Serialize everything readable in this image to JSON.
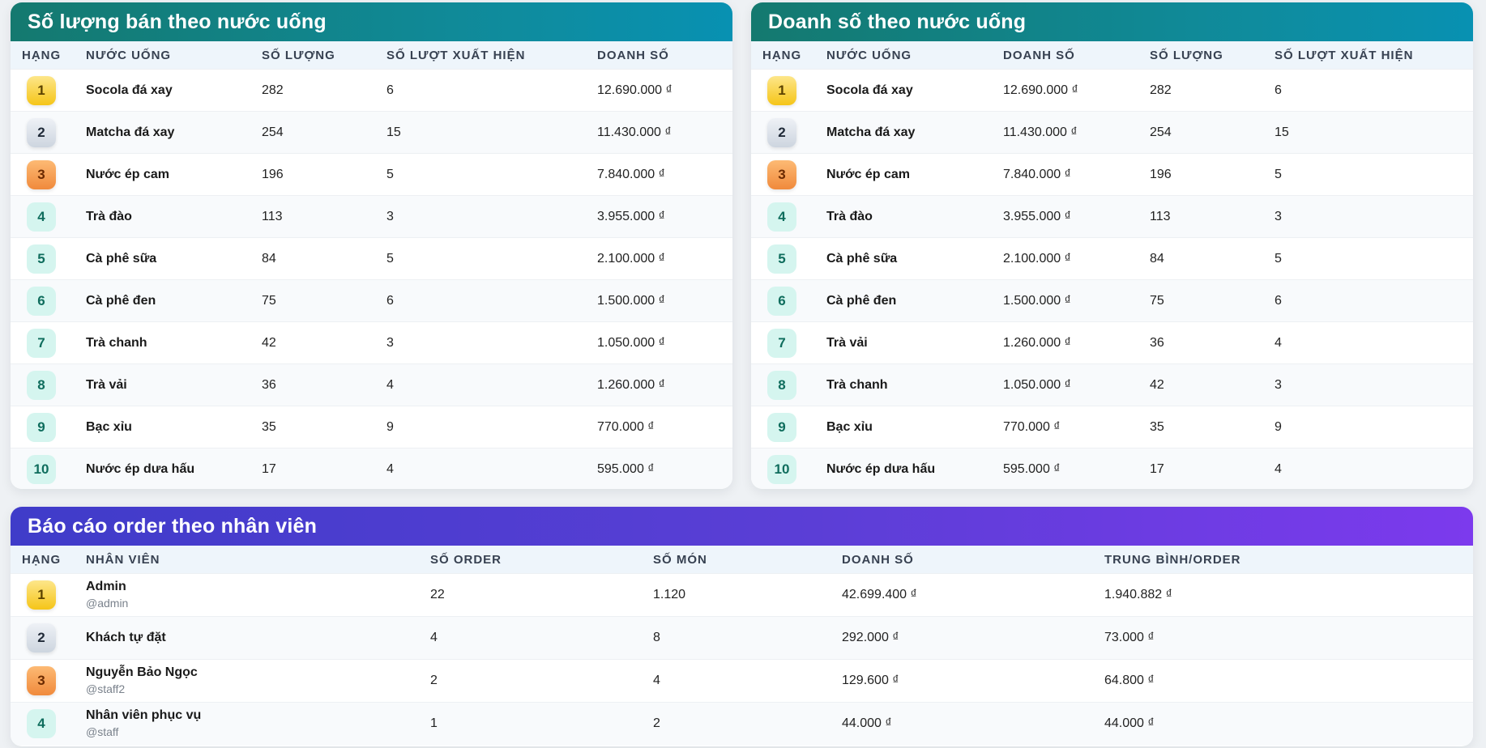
{
  "colors": {
    "teal_header_start": "#14796f",
    "teal_header_end": "#0891b2",
    "purple_header_start": "#3f3cc9",
    "purple_header_end": "#7c3aed",
    "rank1": "#f5c518",
    "rank2": "#cdd5df",
    "rank3": "#f08a3c",
    "rank_other": "#d5f5ef"
  },
  "qty_panel": {
    "title": "Số lượng bán theo nước uống",
    "columns": [
      "HẠNG",
      "NƯỚC UỐNG",
      "SỐ LƯỢNG",
      "SỐ LƯỢT XUẤT HIỆN",
      "DOANH SỐ"
    ],
    "rows": [
      {
        "rank": "1",
        "name": "Socola đá xay",
        "qty": "282",
        "count": "6",
        "revenue": "12.690.000 ₫"
      },
      {
        "rank": "2",
        "name": "Matcha đá xay",
        "qty": "254",
        "count": "15",
        "revenue": "11.430.000 ₫"
      },
      {
        "rank": "3",
        "name": "Nước ép cam",
        "qty": "196",
        "count": "5",
        "revenue": "7.840.000 ₫"
      },
      {
        "rank": "4",
        "name": "Trà đào",
        "qty": "113",
        "count": "3",
        "revenue": "3.955.000 ₫"
      },
      {
        "rank": "5",
        "name": "Cà phê sữa",
        "qty": "84",
        "count": "5",
        "revenue": "2.100.000 ₫"
      },
      {
        "rank": "6",
        "name": "Cà phê đen",
        "qty": "75",
        "count": "6",
        "revenue": "1.500.000 ₫"
      },
      {
        "rank": "7",
        "name": "Trà chanh",
        "qty": "42",
        "count": "3",
        "revenue": "1.050.000 ₫"
      },
      {
        "rank": "8",
        "name": "Trà vải",
        "qty": "36",
        "count": "4",
        "revenue": "1.260.000 ₫"
      },
      {
        "rank": "9",
        "name": "Bạc xỉu",
        "qty": "35",
        "count": "9",
        "revenue": "770.000 ₫"
      },
      {
        "rank": "10",
        "name": "Nước ép dưa hấu",
        "qty": "17",
        "count": "4",
        "revenue": "595.000 ₫"
      }
    ]
  },
  "revenue_panel": {
    "title": "Doanh số theo nước uống",
    "columns": [
      "HẠNG",
      "NƯỚC UỐNG",
      "DOANH SỐ",
      "SỐ LƯỢNG",
      "SỐ LƯỢT XUẤT HIỆN"
    ],
    "rows": [
      {
        "rank": "1",
        "name": "Socola đá xay",
        "revenue": "12.690.000 ₫",
        "qty": "282",
        "count": "6"
      },
      {
        "rank": "2",
        "name": "Matcha đá xay",
        "revenue": "11.430.000 ₫",
        "qty": "254",
        "count": "15"
      },
      {
        "rank": "3",
        "name": "Nước ép cam",
        "revenue": "7.840.000 ₫",
        "qty": "196",
        "count": "5"
      },
      {
        "rank": "4",
        "name": "Trà đào",
        "revenue": "3.955.000 ₫",
        "qty": "113",
        "count": "3"
      },
      {
        "rank": "5",
        "name": "Cà phê sữa",
        "revenue": "2.100.000 ₫",
        "qty": "84",
        "count": "5"
      },
      {
        "rank": "6",
        "name": "Cà phê đen",
        "revenue": "1.500.000 ₫",
        "qty": "75",
        "count": "6"
      },
      {
        "rank": "7",
        "name": "Trà vải",
        "revenue": "1.260.000 ₫",
        "qty": "36",
        "count": "4"
      },
      {
        "rank": "8",
        "name": "Trà chanh",
        "revenue": "1.050.000 ₫",
        "qty": "42",
        "count": "3"
      },
      {
        "rank": "9",
        "name": "Bạc xỉu",
        "revenue": "770.000 ₫",
        "qty": "35",
        "count": "9"
      },
      {
        "rank": "10",
        "name": "Nước ép dưa hấu",
        "revenue": "595.000 ₫",
        "qty": "17",
        "count": "4"
      }
    ]
  },
  "staff_panel": {
    "title": "Báo cáo order theo nhân viên",
    "columns": [
      "HẠNG",
      "NHÂN VIÊN",
      "SỐ ORDER",
      "SỐ MÓN",
      "DOANH SỐ",
      "TRUNG BÌNH/ORDER"
    ],
    "rows": [
      {
        "rank": "1",
        "name": "Admin",
        "username": "@admin",
        "orders": "22",
        "items": "1.120",
        "revenue": "42.699.400 ₫",
        "avg": "1.940.882 ₫"
      },
      {
        "rank": "2",
        "name": "Khách tự đặt",
        "username": "",
        "orders": "4",
        "items": "8",
        "revenue": "292.000 ₫",
        "avg": "73.000 ₫"
      },
      {
        "rank": "3",
        "name": "Nguyễn Bảo Ngọc",
        "username": "@staff2",
        "orders": "2",
        "items": "4",
        "revenue": "129.600 ₫",
        "avg": "64.800 ₫"
      },
      {
        "rank": "4",
        "name": "Nhân viên phục vụ",
        "username": "@staff",
        "orders": "1",
        "items": "2",
        "revenue": "44.000 ₫",
        "avg": "44.000 ₫"
      }
    ]
  }
}
